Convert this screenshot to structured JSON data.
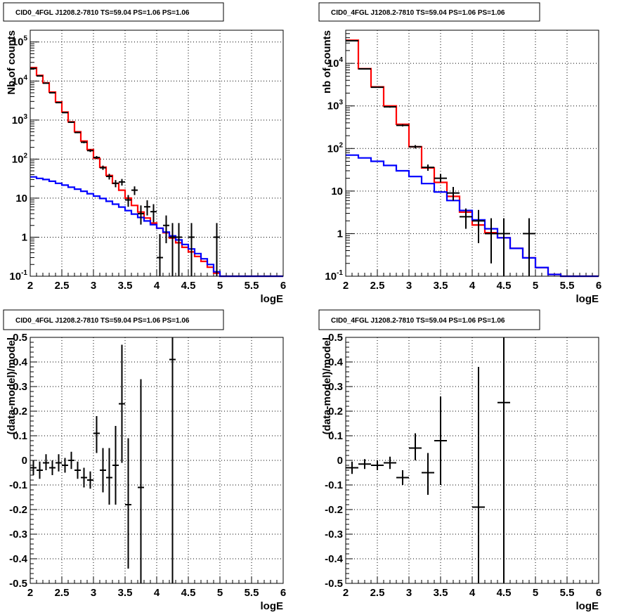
{
  "chart_data": [
    {
      "type": "line",
      "panel": "top-left",
      "title": "CID0_4FGL J1208.2-7810 TS=59.04 PS=1.06 PS=1.06",
      "xlabel": "logE",
      "ylabel": "Nb of counts",
      "xlim": [
        2,
        6
      ],
      "ylim": [
        0.1,
        200000
      ],
      "log_y": true,
      "grid": true,
      "x_ticks": [
        "2",
        "2.5",
        "3",
        "3.5",
        "4",
        "4.5",
        "5",
        "5.5",
        "6"
      ],
      "y_ticks": [
        {
          "base": "10",
          "exp": "-1"
        },
        {
          "base": "1",
          "exp": ""
        },
        {
          "base": "10",
          "exp": ""
        },
        {
          "base": "10",
          "exp": "2"
        },
        {
          "base": "10",
          "exp": "3"
        },
        {
          "base": "10",
          "exp": "4"
        },
        {
          "base": "10",
          "exp": "5"
        }
      ],
      "bin_width": 0.1,
      "series": [
        {
          "color": "#ff0000",
          "kind": "step",
          "x": [
            2.05,
            2.15,
            2.25,
            2.35,
            2.45,
            2.55,
            2.65,
            2.75,
            2.85,
            2.95,
            3.05,
            3.15,
            3.25,
            3.35,
            3.45,
            3.55,
            3.65,
            3.75,
            3.85,
            3.95,
            4.05,
            4.15,
            4.25,
            4.35,
            4.45,
            4.55,
            4.65,
            4.75,
            4.85,
            4.95,
            5.05,
            5.15,
            5.25,
            5.35,
            5.45,
            5.55,
            5.65,
            5.75,
            5.85,
            5.95
          ],
          "values": [
            22000,
            14000,
            9000,
            5200,
            2900,
            1600,
            900,
            500,
            290,
            175,
            105,
            62,
            38,
            24,
            16,
            10,
            6.5,
            4.4,
            3.1,
            2.3,
            1.7,
            1.3,
            0.95,
            0.72,
            0.55,
            0.42,
            0.32,
            0.24,
            0.17,
            0.12,
            0.1,
            0.1,
            0.1,
            0.1,
            0.1,
            0.1,
            0.1,
            0.1,
            0.1,
            0.1
          ]
        },
        {
          "color": "#0000ff",
          "kind": "step",
          "x": [
            2.05,
            2.15,
            2.25,
            2.35,
            2.45,
            2.55,
            2.65,
            2.75,
            2.85,
            2.95,
            3.05,
            3.15,
            3.25,
            3.35,
            3.45,
            3.55,
            3.65,
            3.75,
            3.85,
            3.95,
            4.05,
            4.15,
            4.25,
            4.35,
            4.45,
            4.55,
            4.65,
            4.75,
            4.85,
            4.95,
            5.05,
            5.15,
            5.25,
            5.35,
            5.45,
            5.55,
            5.65,
            5.75,
            5.85,
            5.95
          ],
          "values": [
            35,
            32,
            30,
            27,
            24,
            21.5,
            19,
            17,
            15,
            13,
            11.3,
            9.8,
            8.3,
            7,
            5.9,
            4.8,
            3.9,
            3.2,
            2.6,
            2.1,
            1.7,
            1.35,
            1.08,
            0.85,
            0.65,
            0.5,
            0.38,
            0.28,
            0.2,
            0.13,
            0.1,
            0.1,
            0.1,
            0.1,
            0.1,
            0.1,
            0.1,
            0.1,
            0.1,
            0.1
          ]
        }
      ],
      "points": {
        "color": "#000000",
        "x": [
          2.05,
          2.15,
          2.25,
          2.35,
          2.45,
          2.55,
          2.65,
          2.75,
          2.85,
          2.95,
          3.05,
          3.15,
          3.25,
          3.35,
          3.45,
          3.55,
          3.65,
          3.75,
          3.85,
          3.95,
          4.05,
          4.15,
          4.25,
          4.35,
          4.55,
          4.95
        ],
        "y": [
          21000,
          13500,
          8800,
          5000,
          2800,
          1550,
          880,
          480,
          270,
          165,
          110,
          60,
          36,
          24,
          26,
          9,
          16,
          4,
          6,
          4.5,
          0.3,
          2,
          1,
          1,
          1,
          1
        ],
        "ylow": [
          20700,
          13300,
          8600,
          4900,
          2750,
          1510,
          850,
          460,
          255,
          152,
          100,
          53,
          30,
          19,
          21,
          6,
          12,
          2.1,
          3.6,
          2.4,
          0.1,
          0.7,
          0.1,
          0.1,
          0.1,
          0.1
        ],
        "yhigh": [
          21300,
          13700,
          9000,
          5100,
          2850,
          1590,
          910,
          500,
          285,
          178,
          120,
          68,
          42,
          29,
          31,
          12,
          20,
          6.5,
          8.8,
          7,
          1.2,
          3.6,
          2.3,
          2.3,
          2.3,
          2.3
        ],
        "xerr": 0.05
      }
    },
    {
      "type": "line",
      "panel": "top-right",
      "title": "CID0_4FGL J1208.2-7810 TS=59.04 PS=1.06 PS=1.06",
      "xlabel": "logE",
      "ylabel": "nb of counts",
      "xlim": [
        2,
        6
      ],
      "ylim": [
        0.1,
        60000
      ],
      "log_y": true,
      "grid": true,
      "x_ticks": [
        "2",
        "2.5",
        "3",
        "3.5",
        "4",
        "4.5",
        "5",
        "5.5",
        "6"
      ],
      "y_ticks": [
        {
          "base": "10",
          "exp": "-1"
        },
        {
          "base": "1",
          "exp": ""
        },
        {
          "base": "10",
          "exp": ""
        },
        {
          "base": "10",
          "exp": "2"
        },
        {
          "base": "10",
          "exp": "3"
        },
        {
          "base": "10",
          "exp": "4"
        }
      ],
      "bin_width": 0.2,
      "series": [
        {
          "color": "#ff0000",
          "kind": "step",
          "x": [
            2.1,
            2.3,
            2.5,
            2.7,
            2.9,
            3.1,
            3.3,
            3.5,
            3.7,
            3.9,
            4.1,
            4.3,
            4.5,
            4.7,
            4.9,
            5.1,
            5.3,
            5.5,
            5.7,
            5.9
          ],
          "values": [
            35000,
            7500,
            2800,
            1000,
            370,
            110,
            35,
            16,
            7.5,
            3.2,
            1.6,
            1.05,
            0.8,
            0.45,
            0.27,
            0.16,
            0.11,
            0.1,
            0.1,
            0.1
          ]
        },
        {
          "color": "#0000ff",
          "kind": "step",
          "x": [
            2.1,
            2.3,
            2.5,
            2.7,
            2.9,
            3.1,
            3.3,
            3.5,
            3.7,
            3.9,
            4.1,
            4.3,
            4.5,
            4.7,
            4.9,
            5.1,
            5.3,
            5.5,
            5.7,
            5.9
          ],
          "values": [
            70,
            60,
            50,
            40,
            30,
            22,
            15,
            9.5,
            6,
            3.5,
            2.1,
            1.3,
            0.8,
            0.45,
            0.27,
            0.16,
            0.11,
            0.1,
            0.1,
            0.1
          ]
        }
      ],
      "points": {
        "color": "#000000",
        "x": [
          2.1,
          2.3,
          2.5,
          2.7,
          2.9,
          3.1,
          3.3,
          3.5,
          3.7,
          3.9,
          4.1,
          4.3,
          4.5,
          4.9
        ],
        "y": [
          34000,
          7400,
          2750,
          950,
          350,
          110,
          36,
          20,
          9,
          2.5,
          2,
          1,
          1,
          1
        ],
        "ylow": [
          33700,
          7300,
          2680,
          910,
          330,
          100,
          30,
          16,
          6,
          1.3,
          0.6,
          0.2,
          0.1,
          0.1
        ],
        "yhigh": [
          34300,
          7500,
          2820,
          990,
          370,
          120,
          42,
          25,
          12.5,
          3.9,
          3.6,
          2.3,
          2.3,
          2.3
        ],
        "xerr": 0.1
      }
    },
    {
      "type": "scatter",
      "panel": "bottom-left",
      "title": "CID0_4FGL J1208.2-7810 TS=59.04 PS=1.06 PS=1.06",
      "xlabel": "logE",
      "ylabel": "(data-model)/model",
      "xlim": [
        2,
        6
      ],
      "ylim": [
        -0.5,
        0.5
      ],
      "grid": true,
      "x_ticks": [
        "2",
        "2.5",
        "3",
        "3.5",
        "4",
        "4.5",
        "5",
        "5.5",
        "6"
      ],
      "y_ticks": [
        "-0.5",
        "-0.4",
        "-0.3",
        "-0.2",
        "-0.1",
        "0",
        "0.1",
        "0.2",
        "0.3",
        "0.4",
        "0.5"
      ],
      "points": {
        "color": "#000000",
        "x": [
          2.05,
          2.15,
          2.25,
          2.35,
          2.45,
          2.55,
          2.65,
          2.75,
          2.85,
          2.95,
          3.05,
          3.15,
          3.25,
          3.35,
          3.45,
          3.55,
          3.75,
          4.25
        ],
        "y": [
          -0.03,
          -0.04,
          -0.01,
          -0.03,
          -0.01,
          -0.02,
          0.0,
          -0.04,
          -0.07,
          -0.08,
          0.11,
          -0.04,
          -0.07,
          -0.02,
          0.23,
          -0.18,
          -0.11,
          0.41
        ],
        "ylow": [
          -0.06,
          -0.075,
          -0.04,
          -0.06,
          -0.045,
          -0.05,
          -0.035,
          -0.075,
          -0.11,
          -0.115,
          0.03,
          -0.13,
          -0.18,
          -0.18,
          -0.01,
          -0.44,
          -0.5,
          -0.5
        ],
        "yhigh": [
          0.0,
          -0.005,
          0.025,
          0.0,
          0.025,
          0.01,
          0.035,
          -0.005,
          -0.03,
          -0.045,
          0.18,
          0.05,
          0.05,
          0.14,
          0.47,
          0.09,
          0.33,
          0.5
        ],
        "xerr": 0.05
      }
    },
    {
      "type": "scatter",
      "panel": "bottom-right",
      "title": "CID0_4FGL J1208.2-7810 TS=59.04 PS=1.06 PS=1.06",
      "xlabel": "logE",
      "ylabel": "(data-model)/model",
      "xlim": [
        2,
        6
      ],
      "ylim": [
        -0.5,
        0.5
      ],
      "grid": true,
      "x_ticks": [
        "2",
        "2.5",
        "3",
        "3.5",
        "4",
        "4.5",
        "5",
        "5.5",
        "6"
      ],
      "y_ticks": [
        "-0.5",
        "-0.4",
        "-0.3",
        "-0.2",
        "-0.1",
        "0",
        "0.1",
        "0.2",
        "0.3",
        "0.4",
        "0.5"
      ],
      "points": {
        "color": "#000000",
        "x": [
          2.1,
          2.3,
          2.5,
          2.7,
          2.9,
          3.1,
          3.3,
          3.5,
          4.1,
          4.5
        ],
        "y": [
          -0.03,
          -0.015,
          -0.02,
          -0.01,
          -0.07,
          0.05,
          -0.05,
          0.08,
          -0.19,
          0.235
        ],
        "ylow": [
          -0.055,
          -0.035,
          -0.04,
          -0.035,
          -0.1,
          0.0,
          -0.14,
          -0.1,
          -0.5,
          -0.5
        ],
        "yhigh": [
          -0.005,
          0.005,
          0.0,
          0.015,
          -0.04,
          0.11,
          0.03,
          0.26,
          0.38,
          0.5
        ],
        "xerr": 0.1
      }
    }
  ]
}
